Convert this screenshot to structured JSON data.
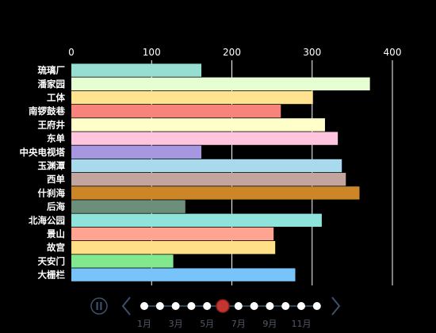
{
  "chart_data": {
    "type": "bar",
    "orientation": "horizontal",
    "categories": [
      "琉璃厂",
      "潘家园",
      "工体",
      "南锣鼓巷",
      "王府井",
      "东单",
      "中央电视塔",
      "玉渊潭",
      "西单",
      "什刹海",
      "后海",
      "北海公园",
      "景山",
      "故宫",
      "天安门",
      "大栅栏"
    ],
    "values": [
      162,
      372,
      301,
      261,
      316,
      332,
      162,
      337,
      342,
      359,
      142,
      312,
      252,
      254,
      127,
      279
    ],
    "colors": [
      "#96DED1",
      "#E6FFD2",
      "#FFE38F",
      "#F7837D",
      "#FFFFCA",
      "#FFC4DE",
      "#A796E0",
      "#A9D9ED",
      "#C1A59E",
      "#CC8628",
      "#6B8F7A",
      "#8EE4DB",
      "#FFA491",
      "#FFE088",
      "#82E88E",
      "#78C3F9"
    ],
    "xlim": [
      0,
      400
    ],
    "x_ticks": [
      "0",
      "100",
      "200",
      "300",
      "400"
    ],
    "grid": true,
    "title": "",
    "xlabel": "",
    "ylabel": ""
  },
  "timeline": {
    "month_labels": [
      "1月",
      "3月",
      "5月",
      "7月",
      "9月",
      "11月"
    ],
    "point_count": 12,
    "current_index": 6,
    "play_icon": "pause-icon",
    "prev_icon": "chevron-left-icon",
    "next_icon": "chevron-right-icon",
    "active_color": "#c23531",
    "line_color": "#2f4554"
  }
}
